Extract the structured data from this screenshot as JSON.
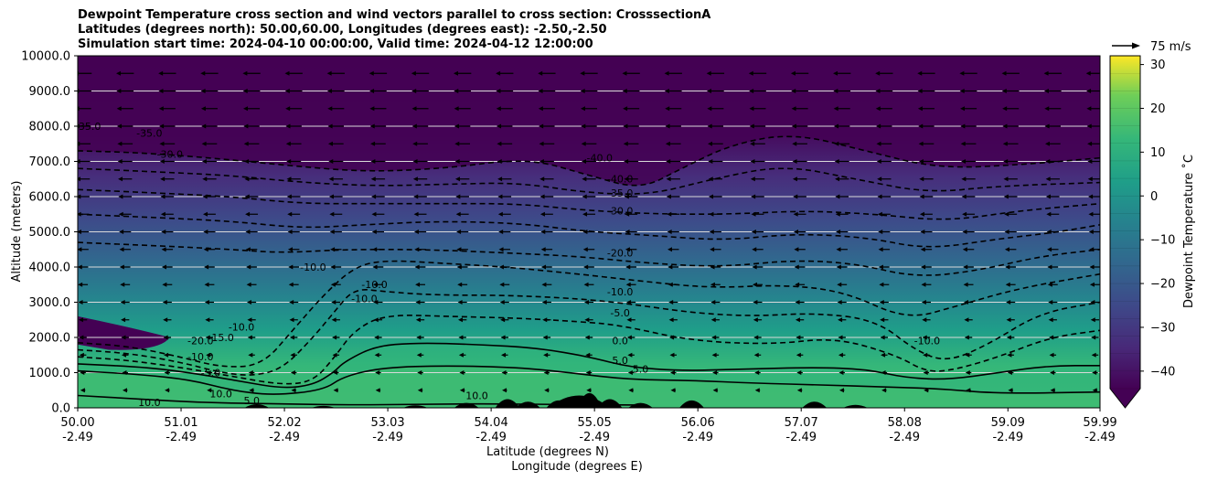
{
  "chart_data": {
    "type": "contour",
    "title_lines": [
      "Dewpoint Temperature cross section and wind vectors parallel to cross section: CrosssectionA",
      "Latitudes (degrees north): 50.00,60.00, Longitudes (degrees east): -2.50,-2.50",
      "Simulation start time: 2024-04-10 00:00:00, Valid time: 2024-04-12 12:00:00"
    ],
    "ylabel": "Altitude (meters)",
    "xlabel_lines": [
      "Latitude (degrees N)",
      "Longitude (degrees E)"
    ],
    "ylim": [
      0,
      10000
    ],
    "xlim": [
      50.0,
      59.99
    ],
    "y_ticks": [
      0,
      1000,
      2000,
      3000,
      4000,
      5000,
      6000,
      7000,
      8000,
      9000,
      10000
    ],
    "y_tick_labels": [
      "0.0",
      "1000.0",
      "2000.0",
      "3000.0",
      "4000.0",
      "5000.0",
      "6000.0",
      "7000.0",
      "8000.0",
      "9000.0",
      "10000.0"
    ],
    "x_ticks": [
      50.0,
      51.01,
      52.02,
      53.03,
      54.04,
      55.05,
      56.06,
      57.07,
      58.08,
      59.09,
      59.99
    ],
    "x_tick_labels": [
      [
        "50.00",
        "-2.49"
      ],
      [
        "51.01",
        "-2.49"
      ],
      [
        "52.02",
        "-2.49"
      ],
      [
        "53.03",
        "-2.49"
      ],
      [
        "54.04",
        "-2.49"
      ],
      [
        "55.05",
        "-2.49"
      ],
      [
        "56.06",
        "-2.49"
      ],
      [
        "57.07",
        "-2.49"
      ],
      [
        "58.08",
        "-2.49"
      ],
      [
        "59.09",
        "-2.49"
      ],
      [
        "59.99",
        "-2.49"
      ]
    ],
    "grid": "horizontal",
    "colorbar": {
      "label": "Dewpoint Temperature ˚C",
      "min": -44,
      "max": 32,
      "ticks": [
        -40,
        -30,
        -20,
        -10,
        0,
        10,
        20,
        30
      ],
      "tick_labels": [
        "−40",
        "−30",
        "−20",
        "−10",
        "0",
        "10",
        "20",
        "30"
      ],
      "extend": "min",
      "colormap": "viridis"
    },
    "quiver_key": {
      "label": "75 m/s"
    },
    "contour_lines": [
      {
        "level": 10,
        "style": "solid",
        "points": [
          [
            50.0,
            350
          ],
          [
            50.6,
            250
          ],
          [
            51.2,
            150
          ],
          [
            51.8,
            120
          ],
          [
            52.6,
            80
          ],
          [
            53.4,
            100
          ],
          [
            54.0,
            120
          ],
          [
            54.8,
            90
          ],
          [
            55.5,
            80
          ]
        ]
      },
      {
        "level": 5,
        "style": "solid",
        "points": [
          [
            50.0,
            1050
          ],
          [
            50.6,
            950
          ],
          [
            51.1,
            800
          ],
          [
            51.5,
            500
          ],
          [
            51.9,
            350
          ],
          [
            52.4,
            500
          ],
          [
            52.6,
            900
          ],
          [
            53.0,
            1150
          ],
          [
            53.6,
            1200
          ],
          [
            54.3,
            1150
          ],
          [
            54.8,
            1000
          ],
          [
            55.4,
            800
          ],
          [
            56.0,
            780
          ],
          [
            56.6,
            700
          ],
          [
            57.3,
            650
          ],
          [
            57.8,
            600
          ],
          [
            58.4,
            550
          ],
          [
            59.0,
            400
          ],
          [
            59.99,
            450
          ]
        ]
      },
      {
        "level": 0,
        "style": "solid",
        "points": [
          [
            50.0,
            1250
          ],
          [
            50.7,
            1150
          ],
          [
            51.2,
            950
          ],
          [
            51.6,
            750
          ],
          [
            52.0,
            550
          ],
          [
            52.3,
            650
          ],
          [
            52.5,
            1000
          ],
          [
            52.6,
            1300
          ],
          [
            52.9,
            1750
          ],
          [
            53.3,
            1850
          ],
          [
            53.9,
            1800
          ],
          [
            54.5,
            1700
          ],
          [
            55.0,
            1450
          ],
          [
            55.4,
            1150
          ],
          [
            55.9,
            1050
          ],
          [
            56.5,
            1100
          ],
          [
            57.2,
            1150
          ],
          [
            57.7,
            1100
          ],
          [
            58.1,
            850
          ],
          [
            58.5,
            800
          ],
          [
            59.0,
            1000
          ],
          [
            59.5,
            1200
          ],
          [
            59.99,
            1200
          ]
        ]
      },
      {
        "level": -5,
        "style": "dashed",
        "points": [
          [
            50.0,
            1450
          ],
          [
            50.5,
            1350
          ],
          [
            51.0,
            1150
          ],
          [
            51.5,
            900
          ],
          [
            52.0,
            650
          ],
          [
            52.3,
            750
          ],
          [
            52.5,
            1400
          ],
          [
            52.7,
            2200
          ],
          [
            53.0,
            2650
          ],
          [
            53.6,
            2600
          ],
          [
            54.3,
            2550
          ],
          [
            54.9,
            2450
          ],
          [
            55.3,
            2350
          ],
          [
            56.0,
            1900
          ],
          [
            56.8,
            1800
          ],
          [
            57.4,
            2000
          ],
          [
            58.0,
            1500
          ],
          [
            58.3,
            1000
          ],
          [
            58.6,
            1100
          ],
          [
            59.0,
            1450
          ],
          [
            59.5,
            2000
          ],
          [
            59.99,
            2200
          ]
        ]
      },
      {
        "level": -10,
        "style": "dashed",
        "points": [
          [
            50.0,
            1650
          ],
          [
            50.5,
            1550
          ],
          [
            51.0,
            1300
          ],
          [
            51.4,
            1000
          ],
          [
            51.7,
            900
          ],
          [
            52.0,
            1100
          ],
          [
            52.3,
            2000
          ],
          [
            52.5,
            2700
          ],
          [
            52.7,
            3400
          ],
          [
            53.0,
            3300
          ],
          [
            53.5,
            3200
          ],
          [
            54.2,
            3200
          ],
          [
            54.9,
            3100
          ],
          [
            55.4,
            2950
          ],
          [
            56.0,
            2700
          ],
          [
            56.6,
            2600
          ],
          [
            57.2,
            2700
          ],
          [
            57.8,
            2500
          ],
          [
            58.2,
            1600
          ],
          [
            58.5,
            1300
          ],
          [
            58.9,
            1800
          ],
          [
            59.4,
            2700
          ],
          [
            59.99,
            3000
          ]
        ]
      },
      {
        "level": -15,
        "style": "dashed",
        "points": [
          [
            50.0,
            1850
          ],
          [
            50.5,
            1750
          ],
          [
            51.0,
            1450
          ],
          [
            51.4,
            1150
          ],
          [
            51.8,
            1200
          ],
          [
            52.1,
            2200
          ],
          [
            52.4,
            3200
          ],
          [
            52.7,
            4000
          ],
          [
            53.0,
            4200
          ],
          [
            53.6,
            4100
          ],
          [
            54.2,
            4000
          ],
          [
            54.9,
            3800
          ],
          [
            55.5,
            3600
          ],
          [
            56.2,
            3400
          ],
          [
            56.9,
            3500
          ],
          [
            57.5,
            3300
          ],
          [
            58.1,
            2500
          ],
          [
            58.6,
            2900
          ],
          [
            59.2,
            3400
          ],
          [
            59.99,
            3800
          ]
        ]
      },
      {
        "level": -20,
        "style": "dashed",
        "points": [
          [
            50.0,
            4700
          ],
          [
            50.8,
            4600
          ],
          [
            51.5,
            4500
          ],
          [
            52.0,
            4400
          ],
          [
            52.6,
            4500
          ],
          [
            53.4,
            4500
          ],
          [
            54.2,
            4400
          ],
          [
            54.9,
            4300
          ],
          [
            55.6,
            4100
          ],
          [
            56.3,
            4000
          ],
          [
            57.0,
            4200
          ],
          [
            57.6,
            4100
          ],
          [
            58.2,
            3700
          ],
          [
            58.8,
            3900
          ],
          [
            59.4,
            4300
          ],
          [
            59.99,
            4500
          ]
        ]
      },
      {
        "level": -25,
        "style": "dashed",
        "points": [
          [
            50.0,
            5500
          ],
          [
            50.8,
            5400
          ],
          [
            51.5,
            5300
          ],
          [
            52.2,
            5100
          ],
          [
            52.8,
            5200
          ],
          [
            53.5,
            5300
          ],
          [
            54.3,
            5250
          ],
          [
            55.0,
            5000
          ],
          [
            55.6,
            4900
          ],
          [
            56.3,
            4750
          ],
          [
            57.0,
            4950
          ],
          [
            57.7,
            4850
          ],
          [
            58.3,
            4500
          ],
          [
            59.0,
            4800
          ],
          [
            59.6,
            5000
          ],
          [
            59.99,
            5200
          ]
        ]
      },
      {
        "level": -30,
        "style": "dashed",
        "points": [
          [
            50.0,
            6200
          ],
          [
            50.8,
            6100
          ],
          [
            51.5,
            6000
          ],
          [
            52.2,
            5800
          ],
          [
            52.9,
            5800
          ],
          [
            53.6,
            5800
          ],
          [
            54.3,
            5800
          ],
          [
            55.0,
            5600
          ],
          [
            55.7,
            5500
          ],
          [
            56.4,
            5500
          ],
          [
            57.1,
            5600
          ],
          [
            57.8,
            5500
          ],
          [
            58.5,
            5300
          ],
          [
            59.2,
            5600
          ],
          [
            59.99,
            5800
          ]
        ]
      },
      {
        "level": -35,
        "style": "dashed",
        "points": [
          [
            50.0,
            6800
          ],
          [
            50.8,
            6700
          ],
          [
            51.5,
            6600
          ],
          [
            52.2,
            6400
          ],
          [
            52.9,
            6300
          ],
          [
            53.6,
            6350
          ],
          [
            54.3,
            6400
          ],
          [
            55.0,
            6100
          ],
          [
            55.6,
            6050
          ],
          [
            56.2,
            6500
          ],
          [
            56.9,
            6900
          ],
          [
            57.6,
            6500
          ],
          [
            58.3,
            6100
          ],
          [
            59.0,
            6300
          ],
          [
            59.99,
            6400
          ]
        ]
      },
      {
        "level": -40,
        "style": "dashed",
        "points": [
          [
            50.0,
            7300
          ],
          [
            50.6,
            7250
          ],
          [
            51.3,
            7100
          ],
          [
            52.0,
            6900
          ],
          [
            52.8,
            6700
          ],
          [
            53.6,
            6800
          ],
          [
            54.4,
            7100
          ],
          [
            55.0,
            6600
          ],
          [
            55.5,
            6200
          ],
          [
            55.9,
            6800
          ],
          [
            56.4,
            7500
          ],
          [
            57.0,
            7800
          ],
          [
            57.7,
            7300
          ],
          [
            58.4,
            6800
          ],
          [
            59.2,
            6900
          ],
          [
            59.99,
            7100
          ]
        ]
      }
    ],
    "contour_labels": [
      {
        "text": "-35.0",
        "x": 50.1,
        "y": 7900
      },
      {
        "text": "-35.0",
        "x": 50.7,
        "y": 7700
      },
      {
        "text": "-30.0",
        "x": 50.9,
        "y": 7100
      },
      {
        "text": "-40.0",
        "x": 55.1,
        "y": 7000
      },
      {
        "text": "-40.0",
        "x": 55.3,
        "y": 6400
      },
      {
        "text": "-35.0",
        "x": 55.3,
        "y": 6000
      },
      {
        "text": "-30.0",
        "x": 55.3,
        "y": 5500
      },
      {
        "text": "-20.0",
        "x": 55.3,
        "y": 4300
      },
      {
        "text": "-10.0",
        "x": 55.3,
        "y": 3200
      },
      {
        "text": "-5.0",
        "x": 55.3,
        "y": 2600
      },
      {
        "text": "0.0",
        "x": 55.3,
        "y": 1800
      },
      {
        "text": "5.0",
        "x": 55.3,
        "y": 1250
      },
      {
        "text": "5.0",
        "x": 55.5,
        "y": 1000
      },
      {
        "text": "-10.0",
        "x": 52.3,
        "y": 3900
      },
      {
        "text": "-10.0",
        "x": 52.8,
        "y": 3000
      },
      {
        "text": "-10.0",
        "x": 52.9,
        "y": 3400
      },
      {
        "text": "-10.0",
        "x": 51.6,
        "y": 2200
      },
      {
        "text": "-15.0",
        "x": 51.4,
        "y": 1900
      },
      {
        "text": "-20.0",
        "x": 51.2,
        "y": 1800
      },
      {
        "text": "-10.0",
        "x": 51.2,
        "y": 1350
      },
      {
        "text": "-5.0",
        "x": 51.3,
        "y": 900
      },
      {
        "text": "10.0",
        "x": 50.7,
        "y": 50
      },
      {
        "text": "10.0",
        "x": 51.4,
        "y": 300
      },
      {
        "text": "5.0",
        "x": 51.7,
        "y": 100
      },
      {
        "text": "10.0",
        "x": 53.9,
        "y": 250
      },
      {
        "text": "-10.0",
        "x": 58.3,
        "y": 1800
      }
    ],
    "terrain_peaks": [
      [
        51.75,
        150
      ],
      [
        52.4,
        80
      ],
      [
        53.3,
        100
      ],
      [
        53.8,
        200
      ],
      [
        54.2,
        350
      ],
      [
        54.4,
        250
      ],
      [
        54.7,
        300
      ],
      [
        55.0,
        600
      ],
      [
        55.2,
        350
      ],
      [
        55.5,
        200
      ],
      [
        56.0,
        300
      ],
      [
        57.2,
        250
      ],
      [
        57.6,
        120
      ]
    ]
  }
}
